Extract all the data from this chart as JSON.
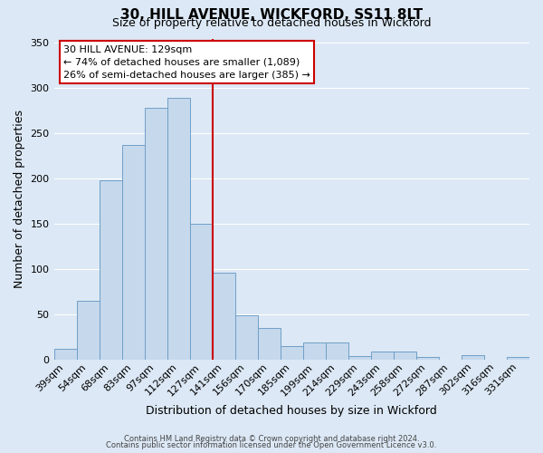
{
  "title": "30, HILL AVENUE, WICKFORD, SS11 8LT",
  "subtitle": "Size of property relative to detached houses in Wickford",
  "xlabel": "Distribution of detached houses by size in Wickford",
  "ylabel": "Number of detached properties",
  "bin_labels": [
    "39sqm",
    "54sqm",
    "68sqm",
    "83sqm",
    "97sqm",
    "112sqm",
    "127sqm",
    "141sqm",
    "156sqm",
    "170sqm",
    "185sqm",
    "199sqm",
    "214sqm",
    "229sqm",
    "243sqm",
    "258sqm",
    "272sqm",
    "287sqm",
    "302sqm",
    "316sqm",
    "331sqm"
  ],
  "bar_heights": [
    12,
    65,
    198,
    237,
    278,
    289,
    150,
    96,
    49,
    35,
    15,
    19,
    19,
    4,
    9,
    9,
    3,
    0,
    5,
    0,
    3
  ],
  "bar_color": "#c5d8ec",
  "bar_edge_color": "#6fa0c8",
  "marker_index": 6,
  "marker_line_color": "#cc0000",
  "annotation_title": "30 HILL AVENUE: 129sqm",
  "annotation_line1": "← 74% of detached houses are smaller (1,089)",
  "annotation_line2": "26% of semi-detached houses are larger (385) →",
  "annotation_box_color": "#ffffff",
  "annotation_border_color": "#cc0000",
  "ylim": [
    0,
    355
  ],
  "yticks": [
    0,
    50,
    100,
    150,
    200,
    250,
    300,
    350
  ],
  "footer_line1": "Contains HM Land Registry data © Crown copyright and database right 2024.",
  "footer_line2": "Contains public sector information licensed under the Open Government Licence v3.0.",
  "background_color": "#dce8f5",
  "plot_background_color": "#dce8f5",
  "title_fontsize": 11,
  "subtitle_fontsize": 9,
  "ylabel_fontsize": 9,
  "xlabel_fontsize": 9,
  "tick_fontsize": 8,
  "annotation_fontsize": 8,
  "footer_fontsize": 6
}
